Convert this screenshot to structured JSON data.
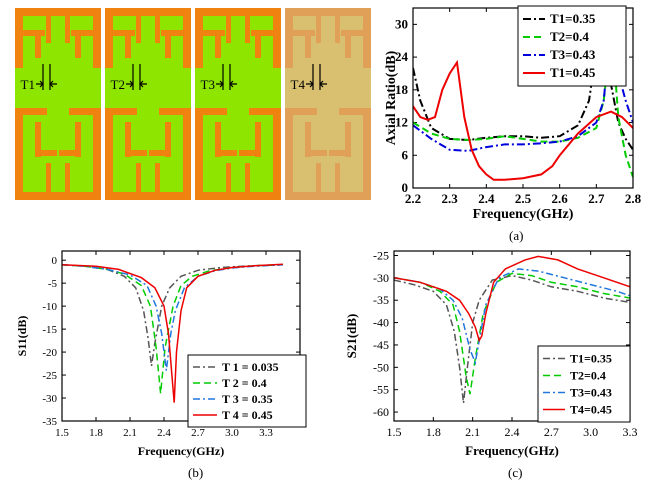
{
  "patches": {
    "labels": [
      "T1",
      "T2",
      "T3",
      "T4"
    ],
    "colors": {
      "orange": "#f0820f",
      "green": "#8ee600",
      "faded_orange": "#e0a058",
      "faded_green": "#d8c070"
    }
  },
  "captions": {
    "a": "(a)",
    "b": "(b)",
    "c": "(c)"
  },
  "chart_data": [
    {
      "id": "a",
      "type": "line",
      "xlabel": "Frequency(GHz)",
      "ylabel": "Axial Ratio(dB)",
      "xlim": [
        2.2,
        2.8
      ],
      "ylim": [
        0,
        33
      ],
      "xticks": [
        "2.2",
        "2.3",
        "2.4",
        "2.5",
        "2.6",
        "2.7",
        "2.8"
      ],
      "yticks": [
        "0",
        "6",
        "12",
        "18",
        "24",
        "30"
      ],
      "legend_position": "top-right",
      "series": [
        {
          "name": "T1=0.35",
          "color": "#000000",
          "dash": "8,3,2,3",
          "x": [
            2.2,
            2.22,
            2.25,
            2.3,
            2.35,
            2.4,
            2.45,
            2.5,
            2.55,
            2.6,
            2.65,
            2.68,
            2.7,
            2.71,
            2.72,
            2.74,
            2.76,
            2.78,
            2.8
          ],
          "y": [
            22,
            16,
            11,
            9,
            8.8,
            9.2,
            9.5,
            9.5,
            9.2,
            9.5,
            11.5,
            16,
            25,
            30.5,
            28,
            19,
            12,
            9,
            7
          ]
        },
        {
          "name": "T2=0.4",
          "color": "#00cc00",
          "dash": "7,4",
          "x": [
            2.2,
            2.25,
            2.3,
            2.35,
            2.4,
            2.45,
            2.5,
            2.55,
            2.6,
            2.65,
            2.7,
            2.72,
            2.73,
            2.74,
            2.75,
            2.76,
            2.78,
            2.8
          ],
          "y": [
            12,
            10,
            9,
            8.8,
            9,
            9.5,
            9,
            8.5,
            8.5,
            9.2,
            11,
            16,
            22,
            26.5,
            22,
            13,
            6,
            2
          ]
        },
        {
          "name": "T3=0.43",
          "color": "#0000dd",
          "dash": "8,3,2,3",
          "x": [
            2.2,
            2.25,
            2.3,
            2.35,
            2.4,
            2.45,
            2.5,
            2.55,
            2.6,
            2.65,
            2.7,
            2.72,
            2.73,
            2.74,
            2.75,
            2.76,
            2.78,
            2.8
          ],
          "y": [
            11.5,
            9,
            7,
            6.8,
            7.5,
            8,
            8,
            8.2,
            8.5,
            9.5,
            12,
            16,
            23,
            29,
            27,
            21,
            16,
            12
          ]
        },
        {
          "name": "T1=0.45",
          "color": "#ee0000",
          "dash": "",
          "x": [
            2.2,
            2.22,
            2.24,
            2.26,
            2.28,
            2.3,
            2.32,
            2.34,
            2.36,
            2.38,
            2.4,
            2.42,
            2.45,
            2.5,
            2.55,
            2.58,
            2.6,
            2.65,
            2.7,
            2.74,
            2.77,
            2.8
          ],
          "y": [
            15,
            13,
            12.5,
            13,
            18,
            21,
            23,
            13,
            7,
            4,
            2.5,
            1.5,
            1.5,
            1.8,
            2.5,
            4,
            6,
            10,
            13,
            14,
            13,
            11
          ]
        }
      ]
    },
    {
      "id": "b",
      "type": "line",
      "xlabel": "Frequency(GHz)",
      "ylabel": "S11(dB)",
      "xlim": [
        1.5,
        3.6
      ],
      "ylim": [
        -35,
        2
      ],
      "xticks": [
        "1.5",
        "1.8",
        "2.1",
        "2.4",
        "2.7",
        "3.0",
        "3.3"
      ],
      "yticks": [
        "0",
        "-5",
        "-10",
        "-15",
        "-20",
        "-25",
        "-30",
        "-35"
      ],
      "legend_position": "bottom-right",
      "series": [
        {
          "name": "T 1 = 0.035",
          "color": "#555555",
          "dash": "7,3,2,3",
          "x": [
            1.5,
            1.7,
            1.9,
            2.05,
            2.15,
            2.22,
            2.26,
            2.29,
            2.32,
            2.38,
            2.45,
            2.55,
            2.7,
            2.9,
            3.1,
            3.3,
            3.45
          ],
          "y": [
            -1,
            -1.3,
            -2,
            -3.5,
            -6,
            -11,
            -17,
            -23,
            -18,
            -10,
            -6,
            -3.5,
            -2.2,
            -1.6,
            -1.3,
            -1.1,
            -1
          ]
        },
        {
          "name": "T 2 = 0.4",
          "color": "#00cc00",
          "dash": "7,4",
          "x": [
            1.5,
            1.7,
            1.9,
            2.05,
            2.2,
            2.28,
            2.33,
            2.37,
            2.41,
            2.48,
            2.55,
            2.65,
            2.8,
            3.0,
            3.2,
            3.45
          ],
          "y": [
            -1,
            -1.3,
            -2,
            -3,
            -5.5,
            -10,
            -19,
            -29,
            -19,
            -10,
            -5.5,
            -3.5,
            -2.3,
            -1.6,
            -1.2,
            -1
          ]
        },
        {
          "name": "T 3 = 0.35",
          "color": "#2277dd",
          "dash": "7,3,2,3",
          "x": [
            1.5,
            1.7,
            1.9,
            2.1,
            2.25,
            2.33,
            2.38,
            2.42,
            2.46,
            2.5,
            2.58,
            2.7,
            2.85,
            3.0,
            3.2,
            3.45
          ],
          "y": [
            -1,
            -1.3,
            -2,
            -3.2,
            -5.5,
            -10,
            -16,
            -24,
            -16,
            -11,
            -6,
            -3.5,
            -2.3,
            -1.7,
            -1.3,
            -1
          ]
        },
        {
          "name": "T 4 = 0.45",
          "color": "#ee0000",
          "dash": "",
          "x": [
            1.5,
            1.8,
            2.0,
            2.2,
            2.32,
            2.4,
            2.44,
            2.47,
            2.49,
            2.51,
            2.55,
            2.6,
            2.7,
            2.85,
            3.0,
            3.2,
            3.45
          ],
          "y": [
            -1,
            -1.3,
            -2,
            -3.8,
            -6,
            -10,
            -16,
            -25,
            -31,
            -20,
            -11,
            -6,
            -3.5,
            -2.2,
            -1.6,
            -1.2,
            -0.9
          ]
        }
      ]
    },
    {
      "id": "c",
      "type": "line",
      "xlabel": "Frequency(GHz)",
      "ylabel": "S21(dB)",
      "xlim": [
        1.5,
        3.3
      ],
      "ylim": [
        -62,
        -24
      ],
      "xticks": [
        "1.5",
        "1.8",
        "2.1",
        "2.4",
        "2.7",
        "3.0",
        "3.3"
      ],
      "yticks": [
        "-25",
        "-30",
        "-35",
        "-40",
        "-45",
        "-50",
        "-55",
        "-60"
      ],
      "legend_position": "bottom-right",
      "series": [
        {
          "name": "T1=0.35",
          "color": "#555555",
          "dash": "7,3,2,3",
          "x": [
            1.5,
            1.65,
            1.8,
            1.9,
            1.96,
            2.0,
            2.03,
            2.06,
            2.1,
            2.15,
            2.25,
            2.4,
            2.55,
            2.7,
            2.9,
            3.1,
            3.3
          ],
          "y": [
            -30.5,
            -31.5,
            -33,
            -36,
            -42,
            -50,
            -58,
            -50,
            -40,
            -35,
            -30.5,
            -29.5,
            -30.5,
            -32,
            -33,
            -34.5,
            -35.5
          ]
        },
        {
          "name": "T2=0.4",
          "color": "#00cc00",
          "dash": "7,4",
          "x": [
            1.5,
            1.7,
            1.85,
            1.95,
            2.0,
            2.05,
            2.08,
            2.12,
            2.18,
            2.28,
            2.4,
            2.55,
            2.7,
            2.9,
            3.1,
            3.3
          ],
          "y": [
            -30,
            -31,
            -33,
            -36,
            -42,
            -52,
            -56,
            -48,
            -38,
            -31,
            -29,
            -29.5,
            -31,
            -32,
            -33.5,
            -34.5
          ]
        },
        {
          "name": "T3=0.43",
          "color": "#2277dd",
          "dash": "7,3,2,3",
          "x": [
            1.5,
            1.7,
            1.85,
            1.95,
            2.02,
            2.08,
            2.12,
            2.15,
            2.2,
            2.3,
            2.45,
            2.6,
            2.8,
            3.0,
            3.2,
            3.3
          ],
          "y": [
            -30,
            -31,
            -32.5,
            -35,
            -39,
            -46,
            -49,
            -44,
            -36,
            -30,
            -28,
            -28.5,
            -30,
            -31.5,
            -33,
            -34
          ]
        },
        {
          "name": "T4=0.45",
          "color": "#ee0000",
          "dash": "",
          "x": [
            1.5,
            1.7,
            1.9,
            2.0,
            2.07,
            2.12,
            2.15,
            2.17,
            2.2,
            2.26,
            2.35,
            2.5,
            2.6,
            2.75,
            2.9,
            3.1,
            3.3
          ],
          "y": [
            -30,
            -31,
            -33,
            -35,
            -38,
            -41,
            -44,
            -43,
            -38,
            -31,
            -28,
            -26,
            -25.2,
            -26,
            -28,
            -30,
            -32
          ]
        }
      ]
    }
  ]
}
